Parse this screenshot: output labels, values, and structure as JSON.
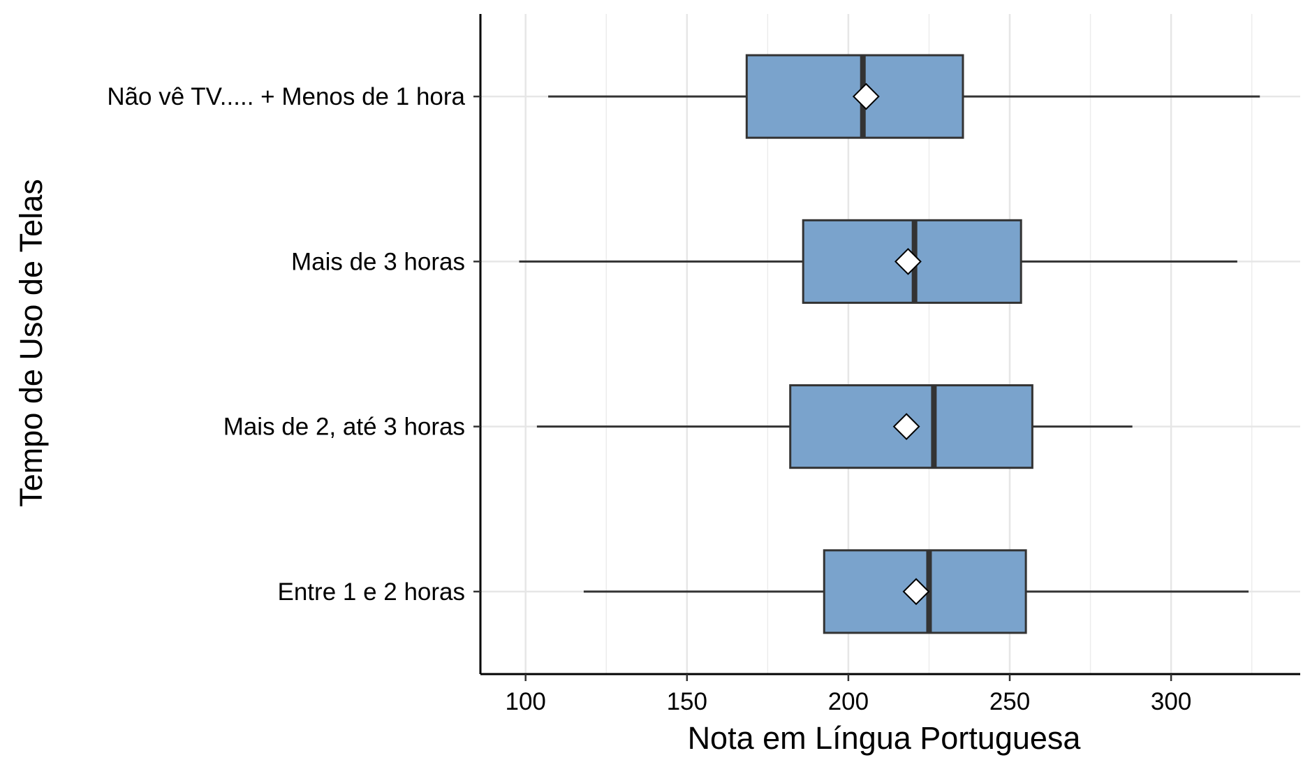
{
  "chart_data": {
    "type": "boxplot",
    "orientation": "horizontal",
    "xlabel": "Nota em Língua Portuguesa",
    "ylabel": "Tempo de Uso de Telas",
    "xlim": [
      86,
      340
    ],
    "x_ticks": [
      100,
      150,
      200,
      250,
      300
    ],
    "grid": true,
    "mean_marker": "white-diamond",
    "box_color": "#7AA3CC",
    "line_color": "#333333",
    "categories": [
      "Não vê TV..... + Menos de 1 hora",
      "Mais de 3 horas",
      "Mais de 2, até 3 horas",
      "Entre 1 e 2 horas"
    ],
    "boxes": [
      {
        "category": "Não vê TV..... + Menos de 1 hora",
        "whisker_low": 107,
        "q1": 168.5,
        "median": 204.5,
        "q3": 235.5,
        "whisker_high": 327.5,
        "mean": 205.5
      },
      {
        "category": "Mais de 3 horas",
        "whisker_low": 98,
        "q1": 186,
        "median": 220.5,
        "q3": 253.5,
        "whisker_high": 320.5,
        "mean": 218.5
      },
      {
        "category": "Mais de 2, até 3 horas",
        "whisker_low": 103.5,
        "q1": 182,
        "median": 226.5,
        "q3": 257,
        "whisker_high": 288,
        "mean": 218
      },
      {
        "category": "Entre 1 e 2 horas",
        "whisker_low": 118,
        "q1": 192.5,
        "median": 225,
        "q3": 255,
        "whisker_high": 324,
        "mean": 221
      }
    ]
  }
}
